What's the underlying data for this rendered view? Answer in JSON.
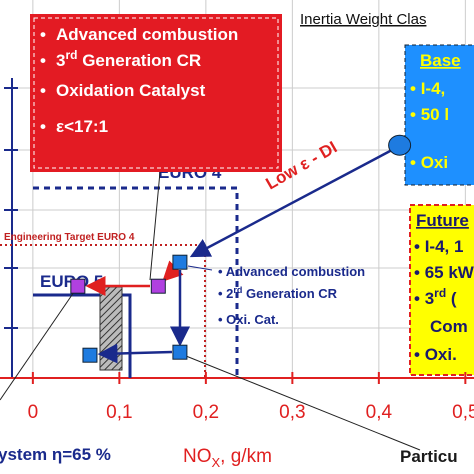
{
  "chart_data": {
    "type": "scatter",
    "title": "Inertia Weight Clas",
    "x_label": {
      "main": "NO",
      "sub": "X",
      "rest": ", g/km"
    },
    "xlim": [
      -0.038,
      0.51
    ],
    "ylim": [
      0,
      0.063
    ],
    "xticks": [
      0,
      {
        "value": 0.1,
        "label": "0,1"
      },
      {
        "value": 0.2,
        "label": "0,2"
      },
      {
        "value": 0.3,
        "label": "0,3"
      },
      {
        "value": 0.4,
        "label": "0,4"
      },
      {
        "value": 0.5,
        "label": "0,5"
      }
    ],
    "grid": true,
    "points": [
      {
        "x": 0.424,
        "y": 0.0388,
        "shape": "circle",
        "color": "#1e7be0"
      },
      {
        "x": 0.17,
        "y": 0.0193,
        "shape": "square",
        "color": "#1e7be0"
      },
      {
        "x": 0.145,
        "y": 0.0153,
        "shape": "square",
        "color": "#b040e0"
      },
      {
        "x": 0.052,
        "y": 0.0153,
        "shape": "square",
        "color": "#b040e0"
      },
      {
        "x": 0.17,
        "y": 0.0043,
        "shape": "square",
        "color": "#1e7be0"
      },
      {
        "x": 0.066,
        "y": 0.0038,
        "shape": "square",
        "color": "#1e7be0"
      }
    ],
    "red_box": {
      "line1": "Advanced combustion",
      "line2_num": "3",
      "line2_sup": "rd",
      "line2_rest": " Generation CR",
      "line3": "Oxidation Catalyst",
      "line4": "ε<17:1"
    },
    "base_box": {
      "title": "Base",
      "line1": "I-4, ",
      "line2": "50 l",
      "line3": "Oxi"
    },
    "future_box": {
      "title": "Future",
      "line1": "I-4, 1",
      "line2": "65 kW",
      "line3_num": "3",
      "line3_sup": "rd",
      "line3_rest": " (",
      "line4": "Com",
      "line5": "Oxi."
    },
    "euro4": "EURO 4",
    "engineering_target": "Engineering Target EURO 4",
    "euro5": "EURO 5",
    "low_eps": "Low ε - DI",
    "mid_labels": {
      "line1": "Advanced combustion",
      "line2_num": "2",
      "line2_sup": "rd",
      "line2_rest": " Generation CR",
      "line3": "Oxi. Cat."
    },
    "bottom_left": "ystem η=65 %",
    "bottom_right": "Particu"
  }
}
